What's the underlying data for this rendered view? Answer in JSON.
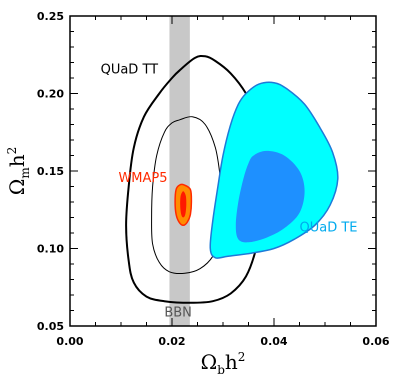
{
  "chart_data": {
    "type": "contour",
    "xlabel": {
      "main": "Ω",
      "sub": "b",
      "tail": "h",
      "sup": "2"
    },
    "ylabel": {
      "main": "Ω",
      "sub": "m",
      "tail": "h",
      "sup": "2"
    },
    "xlim": [
      0.0,
      0.06
    ],
    "ylim": [
      0.05,
      0.25
    ],
    "xticks": [
      {
        "value": 0.0,
        "label": "0.00"
      },
      {
        "value": 0.02,
        "label": "0.02"
      },
      {
        "value": 0.04,
        "label": "0.04"
      },
      {
        "value": 0.06,
        "label": "0.06"
      }
    ],
    "yticks": [
      {
        "value": 0.05,
        "label": "0.05"
      },
      {
        "value": 0.1,
        "label": "0.10"
      },
      {
        "value": 0.15,
        "label": "0.15"
      },
      {
        "value": 0.2,
        "label": "0.20"
      },
      {
        "value": 0.25,
        "label": "0.25"
      }
    ],
    "band": {
      "name": "BBN",
      "xmin": 0.0195,
      "xmax": 0.0235,
      "color": "#c8c8c8"
    },
    "annotations": [
      {
        "text": "QUaD TT",
        "x": 0.006,
        "y": 0.213,
        "color": "#000000"
      },
      {
        "text": "WMAP5",
        "x": 0.0095,
        "y": 0.143,
        "color": "#ff2a00"
      },
      {
        "text": "QUaD TE",
        "x": 0.045,
        "y": 0.111,
        "color": "#00aaee"
      },
      {
        "text": "BBN",
        "x": 0.0185,
        "y": 0.056,
        "color": "#555555"
      }
    ],
    "series": [
      {
        "name": "QUaD TT",
        "kind": "outer",
        "fill": "none",
        "stroke": "#000000",
        "stroke_width": 2,
        "points": [
          [
            0.0215,
            0.215
          ],
          [
            0.0245,
            0.223
          ],
          [
            0.0265,
            0.224
          ],
          [
            0.0285,
            0.221
          ],
          [
            0.0315,
            0.213
          ],
          [
            0.0345,
            0.2
          ],
          [
            0.0365,
            0.185
          ],
          [
            0.0375,
            0.165
          ],
          [
            0.038,
            0.14
          ],
          [
            0.0375,
            0.12
          ],
          [
            0.0365,
            0.1
          ],
          [
            0.0345,
            0.082
          ],
          [
            0.0315,
            0.071
          ],
          [
            0.028,
            0.066
          ],
          [
            0.0235,
            0.065
          ],
          [
            0.0185,
            0.066
          ],
          [
            0.015,
            0.069
          ],
          [
            0.0125,
            0.078
          ],
          [
            0.0115,
            0.092
          ],
          [
            0.011,
            0.115
          ],
          [
            0.0115,
            0.14
          ],
          [
            0.0125,
            0.165
          ],
          [
            0.0145,
            0.185
          ],
          [
            0.0175,
            0.2
          ],
          [
            0.02,
            0.21
          ]
        ]
      },
      {
        "name": "QUaD TT",
        "kind": "inner",
        "fill": "none",
        "stroke": "#000000",
        "stroke_width": 1,
        "points": [
          [
            0.0215,
            0.183
          ],
          [
            0.024,
            0.185
          ],
          [
            0.0265,
            0.18
          ],
          [
            0.0285,
            0.165
          ],
          [
            0.0295,
            0.145
          ],
          [
            0.03,
            0.125
          ],
          [
            0.0295,
            0.108
          ],
          [
            0.028,
            0.095
          ],
          [
            0.0255,
            0.087
          ],
          [
            0.0225,
            0.084
          ],
          [
            0.0195,
            0.085
          ],
          [
            0.0175,
            0.091
          ],
          [
            0.0162,
            0.103
          ],
          [
            0.016,
            0.12
          ],
          [
            0.0162,
            0.14
          ],
          [
            0.017,
            0.16
          ],
          [
            0.0185,
            0.175
          ],
          [
            0.02,
            0.181
          ]
        ]
      },
      {
        "name": "QUaD TE",
        "kind": "outer",
        "fill": "#00ffff",
        "stroke": "#1e7ad8",
        "stroke_width": 1.5,
        "points": [
          [
            0.0345,
            0.2
          ],
          [
            0.037,
            0.206
          ],
          [
            0.04,
            0.207
          ],
          [
            0.0425,
            0.203
          ],
          [
            0.046,
            0.193
          ],
          [
            0.049,
            0.178
          ],
          [
            0.0515,
            0.162
          ],
          [
            0.0525,
            0.145
          ],
          [
            0.051,
            0.128
          ],
          [
            0.048,
            0.115
          ],
          [
            0.044,
            0.106
          ],
          [
            0.04,
            0.1
          ],
          [
            0.0355,
            0.097
          ],
          [
            0.031,
            0.095
          ],
          [
            0.0285,
            0.094
          ],
          [
            0.0275,
            0.1
          ],
          [
            0.028,
            0.118
          ],
          [
            0.029,
            0.14
          ],
          [
            0.03,
            0.16
          ],
          [
            0.0315,
            0.18
          ],
          [
            0.033,
            0.193
          ]
        ]
      },
      {
        "name": "QUaD TE",
        "kind": "inner",
        "fill": "#1e90ff",
        "stroke": "none",
        "stroke_width": 0,
        "points": [
          [
            0.036,
            0.16
          ],
          [
            0.0385,
            0.163
          ],
          [
            0.042,
            0.16
          ],
          [
            0.045,
            0.15
          ],
          [
            0.046,
            0.137
          ],
          [
            0.045,
            0.123
          ],
          [
            0.042,
            0.113
          ],
          [
            0.0385,
            0.107
          ],
          [
            0.035,
            0.104
          ],
          [
            0.033,
            0.106
          ],
          [
            0.0325,
            0.115
          ],
          [
            0.033,
            0.13
          ],
          [
            0.034,
            0.145
          ],
          [
            0.035,
            0.155
          ]
        ]
      },
      {
        "name": "WMAP5",
        "kind": "outer",
        "fill": "#ff8c00",
        "stroke": "#ff2a00",
        "stroke_width": 1.5,
        "points": [
          [
            0.0224,
            0.141
          ],
          [
            0.0236,
            0.138
          ],
          [
            0.0238,
            0.13
          ],
          [
            0.0236,
            0.122
          ],
          [
            0.023,
            0.117
          ],
          [
            0.0222,
            0.115
          ],
          [
            0.0214,
            0.117
          ],
          [
            0.0208,
            0.122
          ],
          [
            0.0206,
            0.13
          ],
          [
            0.0208,
            0.138
          ],
          [
            0.0215,
            0.141
          ]
        ]
      },
      {
        "name": "WMAP5",
        "kind": "inner",
        "fill": "#ff1a00",
        "stroke": "none",
        "stroke_width": 0,
        "points": [
          [
            0.0222,
            0.137
          ],
          [
            0.0227,
            0.134
          ],
          [
            0.0228,
            0.128
          ],
          [
            0.0226,
            0.122
          ],
          [
            0.0222,
            0.12
          ],
          [
            0.0218,
            0.122
          ],
          [
            0.0216,
            0.128
          ],
          [
            0.0217,
            0.134
          ]
        ]
      }
    ]
  }
}
